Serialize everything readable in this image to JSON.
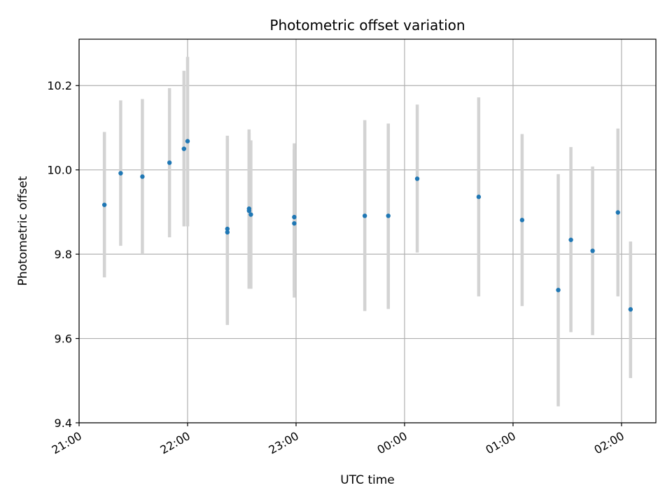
{
  "chart_data": {
    "type": "scatter",
    "title": "Photometric offset variation",
    "xlabel": "UTC time",
    "ylabel": "Photometric offset",
    "x_unit": "UTC clock time (hh:mm), night spanning midnight",
    "xlim": [
      "21:00",
      "02:19"
    ],
    "ylim": [
      9.4,
      10.31
    ],
    "grid": true,
    "x_ticks": [
      "21:00",
      "22:00",
      "23:00",
      "00:00",
      "01:00",
      "02:00"
    ],
    "y_ticks": [
      "9.4",
      "9.6",
      "9.8",
      "10.0",
      "10.2"
    ],
    "colors": {
      "points": "#1f77b4",
      "errorbars": "#d3d3d3",
      "grid": "#b0b0b0"
    },
    "points": [
      {
        "x": "21:14",
        "y": 9.917,
        "lo": 9.745,
        "hi": 10.09
      },
      {
        "x": "21:23",
        "y": 9.992,
        "lo": 9.82,
        "hi": 10.165
      },
      {
        "x": "21:35",
        "y": 9.984,
        "lo": 9.8,
        "hi": 10.168
      },
      {
        "x": "21:50",
        "y": 10.017,
        "lo": 9.84,
        "hi": 10.194
      },
      {
        "x": "21:58",
        "y": 10.05,
        "lo": 9.866,
        "hi": 10.235
      },
      {
        "x": "22:00",
        "y": 10.068,
        "lo": 9.866,
        "hi": 10.268
      },
      {
        "x": "22:22",
        "y": 9.852,
        "lo": 9.632,
        "hi": 10.072
      },
      {
        "x": "22:22",
        "y": 9.86,
        "lo": 9.638,
        "hi": 10.081
      },
      {
        "x": "22:34",
        "y": 9.908,
        "lo": 9.72,
        "hi": 10.096
      },
      {
        "x": "22:34",
        "y": 9.903,
        "lo": 9.718,
        "hi": 10.088
      },
      {
        "x": "22:35",
        "y": 9.894,
        "lo": 9.718,
        "hi": 10.07
      },
      {
        "x": "22:59",
        "y": 9.888,
        "lo": 9.713,
        "hi": 10.063
      },
      {
        "x": "22:59",
        "y": 9.873,
        "lo": 9.697,
        "hi": 10.049
      },
      {
        "x": "23:38",
        "y": 9.891,
        "lo": 9.665,
        "hi": 10.118
      },
      {
        "x": "23:51",
        "y": 9.891,
        "lo": 9.67,
        "hi": 10.11
      },
      {
        "x": "00:07",
        "y": 9.979,
        "lo": 9.804,
        "hi": 10.155
      },
      {
        "x": "00:41",
        "y": 9.936,
        "lo": 9.7,
        "hi": 10.172
      },
      {
        "x": "01:05",
        "y": 9.881,
        "lo": 9.677,
        "hi": 10.085
      },
      {
        "x": "01:25",
        "y": 9.715,
        "lo": 9.439,
        "hi": 9.99
      },
      {
        "x": "01:32",
        "y": 9.834,
        "lo": 9.615,
        "hi": 10.054
      },
      {
        "x": "01:44",
        "y": 9.808,
        "lo": 9.608,
        "hi": 10.008
      },
      {
        "x": "01:58",
        "y": 9.899,
        "lo": 9.7,
        "hi": 10.098
      },
      {
        "x": "02:05",
        "y": 9.669,
        "lo": 9.506,
        "hi": 9.83
      }
    ]
  }
}
